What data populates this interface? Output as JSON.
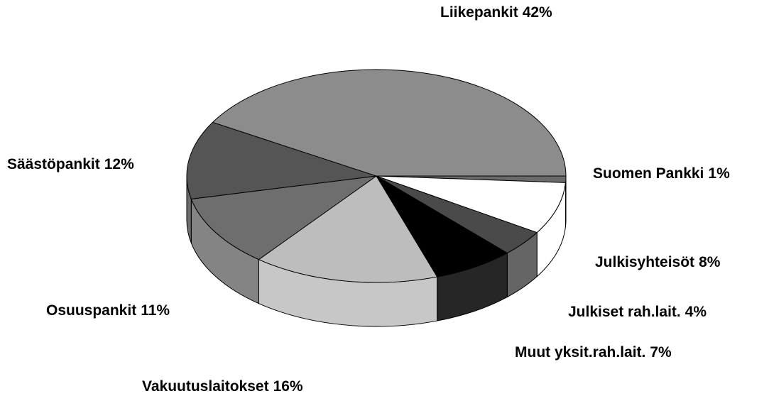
{
  "chart_data": {
    "type": "pie",
    "categories": [
      "Suomen Pankki",
      "Julkisyhteisöt",
      "Julkiset rah.lait.",
      "Muut yksit.rah.lait.",
      "Vakuutuslaitokset",
      "Osuuspankit",
      "Säästöpankit",
      "Liikepankit"
    ],
    "values": [
      1,
      8,
      4,
      7,
      16,
      11,
      12,
      42
    ],
    "value_labels": [
      "1%",
      "8%",
      "4%",
      "7%",
      "16%",
      "11%",
      "12%",
      "42%"
    ],
    "colors": [
      "#6a6a6a",
      "#ffffff",
      "#4a4a4a",
      "#000000",
      "#bdbdbd",
      "#6e6e6e",
      "#555555",
      "#8c8c8c"
    ]
  }
}
